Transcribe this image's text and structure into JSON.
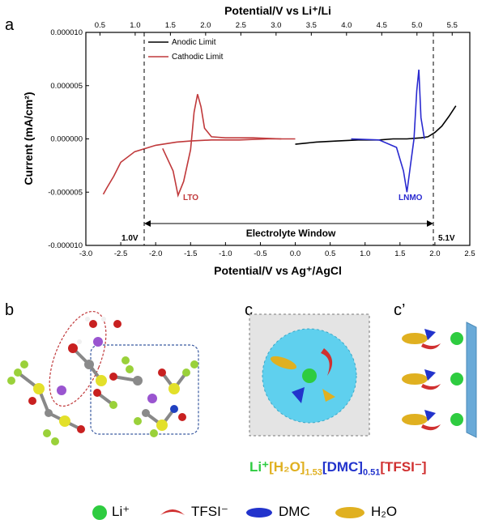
{
  "panels": {
    "a": "a",
    "b": "b",
    "c": "c",
    "c_prime": "c’"
  },
  "chart_data": {
    "type": "line",
    "xlabel": "Potential/V vs Ag⁺/AgCl",
    "x2label": "Potential/V vs Li⁺/Li",
    "ylabel": "Current (mA/cm²)",
    "xlim": [
      -3.0,
      2.5
    ],
    "x2lim": [
      0.3,
      5.75
    ],
    "ylim": [
      -1e-05,
      1e-05
    ],
    "xticks": [
      "-3.0",
      "-2.5",
      "-2.0",
      "-1.5",
      "-1.0",
      "-0.5",
      "0.0",
      "0.5",
      "1.0",
      "1.5",
      "2.0",
      "2.5"
    ],
    "x2ticks": [
      "0.5",
      "1.0",
      "1.5",
      "2.0",
      "2.5",
      "3.0",
      "3.5",
      "4.0",
      "4.5",
      "5.0",
      "5.5"
    ],
    "yticks": [
      "0.000010",
      "0.000005",
      "0.000000",
      "-0.000005",
      "-0.000010"
    ],
    "legend_position": "top-left",
    "series": [
      {
        "name": "Anodic Limit",
        "color": "#000000",
        "x": [
          0.0,
          0.3,
          0.6,
          0.9,
          1.2,
          1.4,
          1.6,
          1.8,
          1.9,
          2.0,
          2.1,
          2.2,
          2.3
        ],
        "y": [
          -5e-07,
          -3e-07,
          -2e-07,
          -1e-07,
          -1e-07,
          0.0,
          0.0,
          1e-07,
          2e-07,
          6e-07,
          1.2e-06,
          2.1e-06,
          3.1e-06
        ]
      },
      {
        "name": "Cathodic Limit",
        "color": "#c0393b",
        "x": [
          -2.75,
          -2.7,
          -2.6,
          -2.5,
          -2.3,
          -2.0,
          -1.7,
          -1.5,
          -1.2,
          -0.8,
          -0.4,
          0.0
        ],
        "y": [
          -5.2e-06,
          -4.6e-06,
          -3.5e-06,
          -2.2e-06,
          -1.2e-06,
          -6e-07,
          -3e-07,
          -2e-07,
          -1e-07,
          -1e-07,
          0.0,
          0.0
        ]
      },
      {
        "name": "LTO",
        "color": "#c0393b",
        "x": [
          -1.9,
          -1.75,
          -1.68,
          -1.6,
          -1.5,
          -1.45,
          -1.4,
          -1.35,
          -1.3,
          -1.2,
          -1.0,
          -0.6,
          -0.2
        ],
        "y": [
          -9e-07,
          -3e-06,
          -5.3e-06,
          -4e-06,
          -1e-06,
          2.5e-06,
          4.2e-06,
          3e-06,
          1e-06,
          2e-07,
          1e-07,
          1e-07,
          0.0
        ]
      },
      {
        "name": "LNMO",
        "color": "#2a2ad0",
        "x": [
          0.8,
          1.2,
          1.45,
          1.55,
          1.6,
          1.65,
          1.7,
          1.74,
          1.77,
          1.8,
          1.85
        ],
        "y": [
          0.0,
          -1e-07,
          -8e-07,
          -3e-06,
          -5e-06,
          -2.5e-06,
          0.0,
          4.5e-06,
          6.5e-06,
          2e-06,
          0.0
        ]
      }
    ],
    "annotations": {
      "lto_label": "LTO",
      "lnmo_label": "LNMO",
      "window_label": "Electrolyte Window",
      "left_limit_label": "1.0V",
      "right_limit_label": "5.1V",
      "left_limit_x": -2.2,
      "right_limit_x": 1.9
    }
  },
  "formula": {
    "li": "Li⁺",
    "h2o": "[H₂O]",
    "h2o_sub": "1.53",
    "dmc": "[DMC]",
    "dmc_sub": "0.51",
    "tfsi": "[TFSI⁻]"
  },
  "legend": {
    "li": "Li⁺",
    "tfsi": "TFSI⁻",
    "dmc": "DMC",
    "h2o": "H₂O"
  },
  "colors": {
    "li": "#2ecc40",
    "tfsi": "#d03030",
    "dmc": "#2233cc",
    "h2o": "#e0b020",
    "shell": "#5fd0ee",
    "electrode": "#6aaad8"
  }
}
